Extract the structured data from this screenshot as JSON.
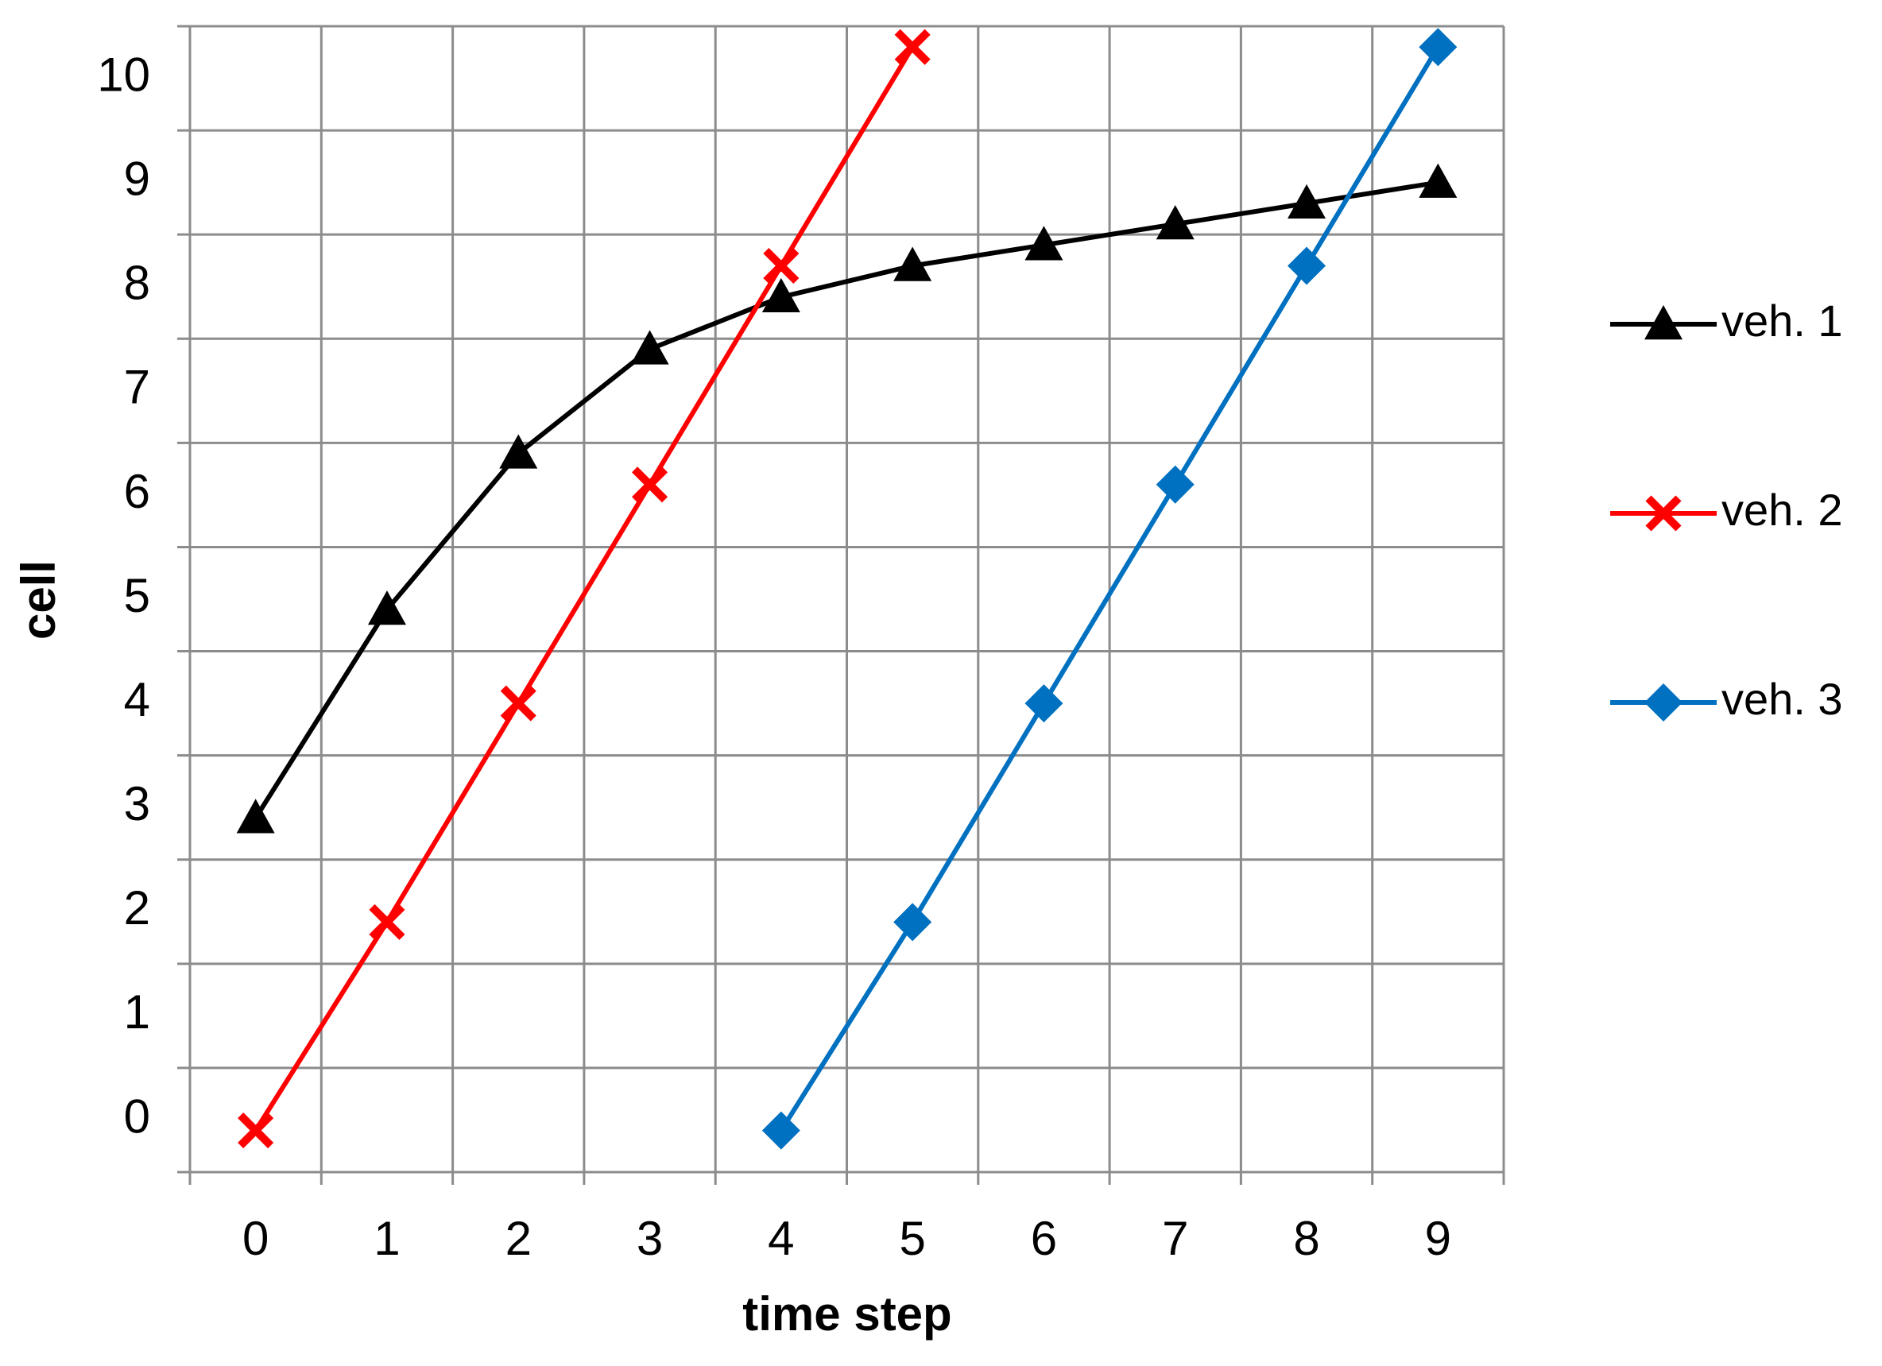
{
  "chart_data": {
    "type": "line",
    "xlabel": "time step",
    "ylabel": "cell",
    "categories": [
      "0",
      "1",
      "2",
      "3",
      "4",
      "5",
      "6",
      "7",
      "8",
      "9"
    ],
    "series": [
      {
        "name": "veh. 1",
        "color": "#000000",
        "marker": "triangle",
        "values": [
          2.9,
          4.9,
          6.4,
          7.4,
          7.9,
          8.2,
          8.4,
          8.6,
          8.8,
          9.0
        ]
      },
      {
        "name": "veh. 2",
        "color": "#ff0000",
        "marker": "x",
        "values": [
          -0.1,
          1.9,
          4.0,
          6.1,
          8.2,
          10.3,
          null,
          null,
          null,
          null
        ]
      },
      {
        "name": "veh. 3",
        "color": "#0070c0",
        "marker": "diamond",
        "values": [
          null,
          null,
          null,
          null,
          -0.1,
          1.9,
          4.0,
          6.1,
          8.2,
          10.3
        ]
      }
    ],
    "ylim": [
      -0.5,
      10.5
    ],
    "yticks": [
      0,
      1,
      2,
      3,
      4,
      5,
      6,
      7,
      8,
      9,
      10
    ],
    "grid": true,
    "legend": "right"
  }
}
